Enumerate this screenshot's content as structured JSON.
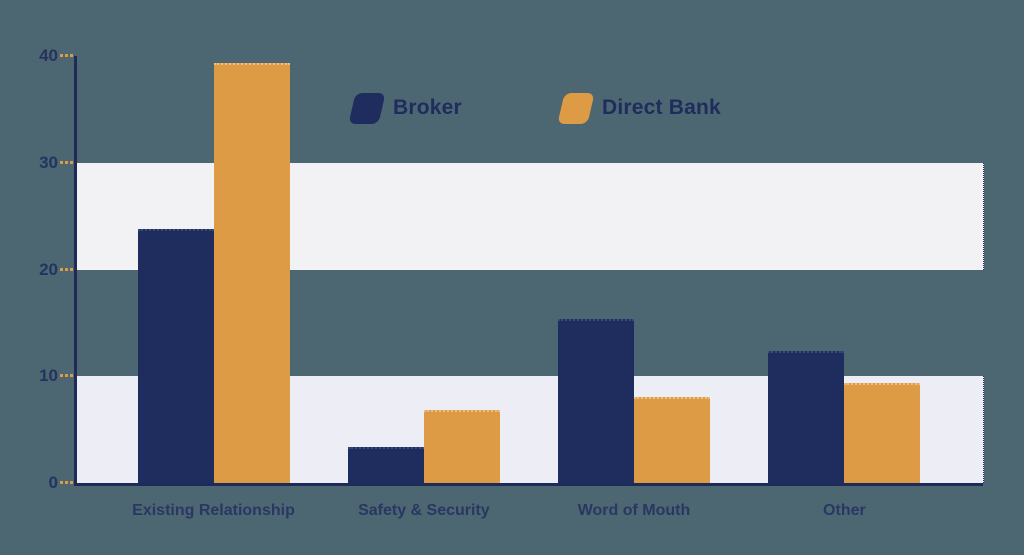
{
  "chart_data": {
    "type": "bar",
    "title": "",
    "xlabel": "",
    "ylabel": "",
    "categories": [
      "Existing Relationship",
      "Safety & Security",
      "Word of Mouth",
      "Other"
    ],
    "series": [
      {
        "name": "Broker",
        "color": "#1f2c5e",
        "values": [
          23.8,
          3.4,
          15.4,
          12.4
        ]
      },
      {
        "name": "Direct Bank",
        "color": "#dd9b45",
        "values": [
          39.3,
          6.8,
          8.1,
          9.4
        ]
      }
    ],
    "ylim": [
      0,
      40
    ],
    "yticks": [
      0,
      10,
      20,
      30,
      40
    ],
    "bands": [
      {
        "from": 0,
        "to": 10,
        "color": "#edeef5"
      },
      {
        "from": 20,
        "to": 30,
        "color": "#f2f1f3"
      }
    ],
    "legend_position": "top-center",
    "grid": "horizontal-bands-only"
  },
  "colors": {
    "background": "#4c6771",
    "broker": "#1f2c5e",
    "direct_bank": "#dd9b45",
    "axis": "#1e2b58",
    "tick_dash": "#dd9b45",
    "tick_text": "#24335f",
    "category_text": "#2a3763",
    "legend_text": "#1f2c5e",
    "band_upper": "#f2f1f3",
    "band_lower": "#edeef5"
  }
}
